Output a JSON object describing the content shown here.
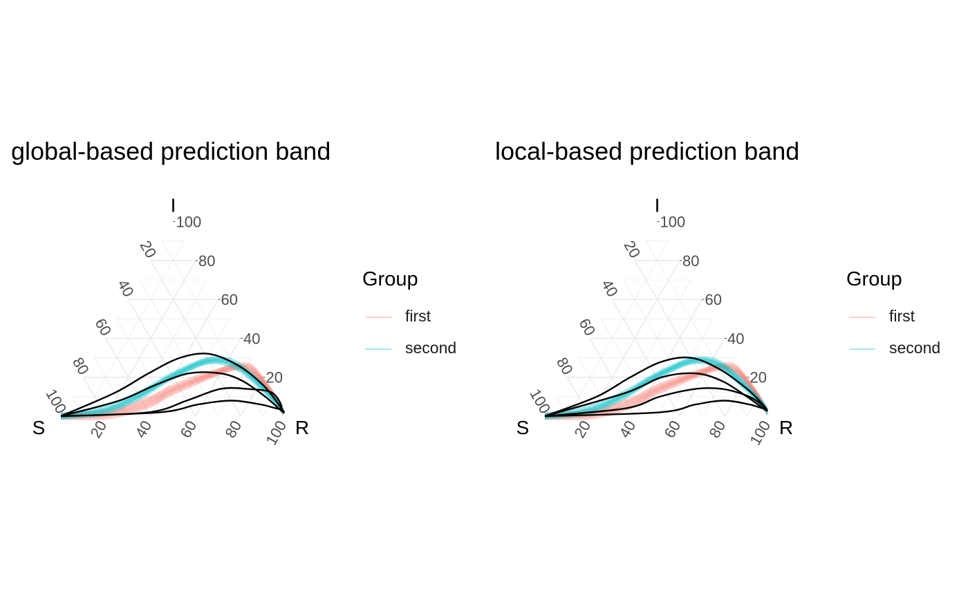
{
  "colors": {
    "first": "#F8766D",
    "second": "#00BFC4",
    "band": "#000000",
    "grid": "#EBEBEB"
  },
  "legend": {
    "title": "Group",
    "items": [
      {
        "label": "first",
        "color": "#F8766D"
      },
      {
        "label": "second",
        "color": "#00BFC4"
      }
    ]
  },
  "chart_data": [
    {
      "type": "ternary",
      "title": "global-based prediction band",
      "axes": {
        "top": "I",
        "left": "S",
        "right": "R",
        "range": [
          0,
          100
        ]
      },
      "ticks": [
        "20",
        "40",
        "60",
        "80",
        "100"
      ],
      "grid": true,
      "legend_position": "right",
      "series": [
        {
          "name": "first",
          "curves": [
            [
              [
                100,
                0,
                0
              ],
              [
                80,
                0,
                20
              ],
              [
                60,
                5,
                35
              ],
              [
                45,
                12,
                43
              ],
              [
                30,
                18,
                52
              ],
              [
                20,
                22,
                58
              ],
              [
                12,
                25,
                63
              ],
              [
                6,
                26,
                68
              ],
              [
                2,
                24,
                74
              ],
              [
                0,
                12,
                88
              ],
              [
                0,
                2,
                98
              ]
            ],
            [
              [
                100,
                0,
                0
              ],
              [
                78,
                2,
                20
              ],
              [
                58,
                8,
                34
              ],
              [
                42,
                15,
                43
              ],
              [
                28,
                20,
                52
              ],
              [
                18,
                23,
                59
              ],
              [
                10,
                25,
                65
              ],
              [
                5,
                24,
                71
              ],
              [
                2,
                20,
                78
              ],
              [
                0,
                10,
                90
              ],
              [
                0,
                4,
                96
              ]
            ]
          ]
        },
        {
          "name": "second",
          "curves": [
            [
              [
                100,
                0,
                0
              ],
              [
                80,
                2,
                18
              ],
              [
                60,
                10,
                30
              ],
              [
                45,
                18,
                37
              ],
              [
                32,
                24,
                44
              ],
              [
                22,
                28,
                50
              ],
              [
                14,
                28,
                58
              ],
              [
                8,
                24,
                68
              ],
              [
                4,
                16,
                80
              ],
              [
                0,
                6,
                94
              ],
              [
                0,
                2,
                98
              ]
            ],
            [
              [
                100,
                0,
                0
              ],
              [
                78,
                4,
                18
              ],
              [
                58,
                12,
                30
              ],
              [
                42,
                20,
                38
              ],
              [
                28,
                26,
                46
              ],
              [
                18,
                29,
                53
              ],
              [
                10,
                28,
                62
              ],
              [
                5,
                22,
                73
              ],
              [
                2,
                14,
                84
              ],
              [
                0,
                5,
                95
              ],
              [
                0,
                3,
                97
              ]
            ]
          ]
        }
      ],
      "bands": [
        {
          "group": "first",
          "boundary": [
            [
              100,
              0,
              0
            ],
            [
              60,
              2,
              38
            ],
            [
              40,
              8,
              52
            ],
            [
              22,
              14,
              64
            ],
            [
              10,
              14,
              76
            ],
            [
              0,
              12,
              88
            ],
            [
              0,
              4,
              96
            ],
            [
              8,
              6,
              86
            ],
            [
              20,
              8,
              72
            ],
            [
              36,
              6,
              58
            ],
            [
              55,
              2,
              43
            ],
            [
              100,
              0,
              0
            ]
          ]
        },
        {
          "group": "second",
          "boundary": [
            [
              100,
              0,
              0
            ],
            [
              70,
              12,
              18
            ],
            [
              50,
              22,
              28
            ],
            [
              32,
              30,
              38
            ],
            [
              18,
              32,
              50
            ],
            [
              8,
              26,
              66
            ],
            [
              2,
              16,
              82
            ],
            [
              0,
              6,
              94
            ],
            [
              0,
              2,
              98
            ],
            [
              4,
              10,
              86
            ],
            [
              10,
              18,
              72
            ],
            [
              18,
              22,
              60
            ],
            [
              32,
              22,
              46
            ],
            [
              50,
              16,
              34
            ],
            [
              70,
              8,
              22
            ],
            [
              100,
              0,
              0
            ]
          ]
        }
      ]
    },
    {
      "type": "ternary",
      "title": "local-based prediction band",
      "axes": {
        "top": "I",
        "left": "S",
        "right": "R",
        "range": [
          0,
          100
        ]
      },
      "ticks": [
        "20",
        "40",
        "60",
        "80",
        "100"
      ],
      "grid": true,
      "legend_position": "right",
      "series": [
        {
          "name": "first",
          "curves": [
            [
              [
                100,
                0,
                0
              ],
              [
                80,
                0,
                20
              ],
              [
                60,
                5,
                35
              ],
              [
                45,
                12,
                43
              ],
              [
                30,
                18,
                52
              ],
              [
                20,
                22,
                58
              ],
              [
                12,
                25,
                63
              ],
              [
                6,
                26,
                68
              ],
              [
                2,
                24,
                74
              ],
              [
                0,
                12,
                88
              ],
              [
                0,
                2,
                98
              ]
            ],
            [
              [
                100,
                0,
                0
              ],
              [
                78,
                2,
                20
              ],
              [
                58,
                8,
                34
              ],
              [
                42,
                15,
                43
              ],
              [
                28,
                20,
                52
              ],
              [
                18,
                23,
                59
              ],
              [
                10,
                25,
                65
              ],
              [
                5,
                24,
                71
              ],
              [
                2,
                20,
                78
              ],
              [
                0,
                10,
                90
              ],
              [
                0,
                4,
                96
              ]
            ]
          ]
        },
        {
          "name": "second",
          "curves": [
            [
              [
                100,
                0,
                0
              ],
              [
                80,
                2,
                18
              ],
              [
                60,
                10,
                30
              ],
              [
                45,
                18,
                37
              ],
              [
                32,
                24,
                44
              ],
              [
                22,
                28,
                50
              ],
              [
                14,
                28,
                58
              ],
              [
                8,
                24,
                68
              ],
              [
                4,
                16,
                80
              ],
              [
                0,
                6,
                94
              ],
              [
                0,
                2,
                98
              ]
            ],
            [
              [
                100,
                0,
                0
              ],
              [
                78,
                4,
                18
              ],
              [
                58,
                12,
                30
              ],
              [
                42,
                20,
                38
              ],
              [
                28,
                26,
                46
              ],
              [
                18,
                29,
                53
              ],
              [
                10,
                28,
                62
              ],
              [
                5,
                22,
                73
              ],
              [
                2,
                14,
                84
              ],
              [
                0,
                5,
                95
              ],
              [
                0,
                3,
                97
              ]
            ]
          ]
        }
      ],
      "bands": [
        {
          "group": "first",
          "boundary": [
            [
              100,
              0,
              0
            ],
            [
              62,
              4,
              34
            ],
            [
              44,
              10,
              46
            ],
            [
              26,
              14,
              60
            ],
            [
              14,
              14,
              72
            ],
            [
              4,
              10,
              86
            ],
            [
              0,
              4,
              96
            ],
            [
              6,
              6,
              88
            ],
            [
              16,
              8,
              76
            ],
            [
              30,
              6,
              64
            ],
            [
              48,
              2,
              50
            ],
            [
              100,
              0,
              0
            ]
          ]
        },
        {
          "group": "second",
          "boundary": [
            [
              100,
              0,
              0
            ],
            [
              72,
              10,
              18
            ],
            [
              52,
              20,
              28
            ],
            [
              34,
              28,
              38
            ],
            [
              20,
              30,
              50
            ],
            [
              10,
              24,
              66
            ],
            [
              3,
              14,
              83
            ],
            [
              0,
              6,
              94
            ],
            [
              0,
              3,
              97
            ],
            [
              5,
              10,
              85
            ],
            [
              12,
              18,
              70
            ],
            [
              22,
              22,
              56
            ],
            [
              38,
              20,
              42
            ],
            [
              58,
              12,
              30
            ],
            [
              100,
              0,
              0
            ]
          ]
        }
      ]
    }
  ]
}
